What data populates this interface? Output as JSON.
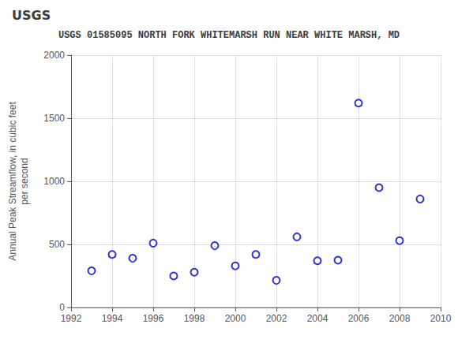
{
  "chart_data": {
    "type": "scatter",
    "title": "USGS 01585095 NORTH FORK WHITEMARSH RUN NEAR WHITE MARSH, MD",
    "annotations": [
      "USGS"
    ],
    "ylabel": "Annual Peak Streamflow, in cubic feet\nper second",
    "x": [
      1993,
      1994,
      1995,
      1996,
      1997,
      1998,
      1999,
      2000,
      2001,
      2002,
      2003,
      2004,
      2005,
      2006,
      2007,
      2008,
      2009
    ],
    "values": [
      290,
      420,
      390,
      510,
      250,
      280,
      490,
      330,
      420,
      215,
      560,
      370,
      375,
      1620,
      950,
      530,
      860
    ],
    "color": "#0000cc",
    "marker": "circle",
    "xlim": [
      1992,
      2010
    ],
    "xticks": [
      1992,
      1994,
      1996,
      1998,
      2000,
      2002,
      2004,
      2006,
      2008,
      2010
    ],
    "ylim": [
      0,
      2000
    ],
    "yticks": [
      0,
      500,
      1000,
      1500,
      2000
    ],
    "grid": true
  }
}
